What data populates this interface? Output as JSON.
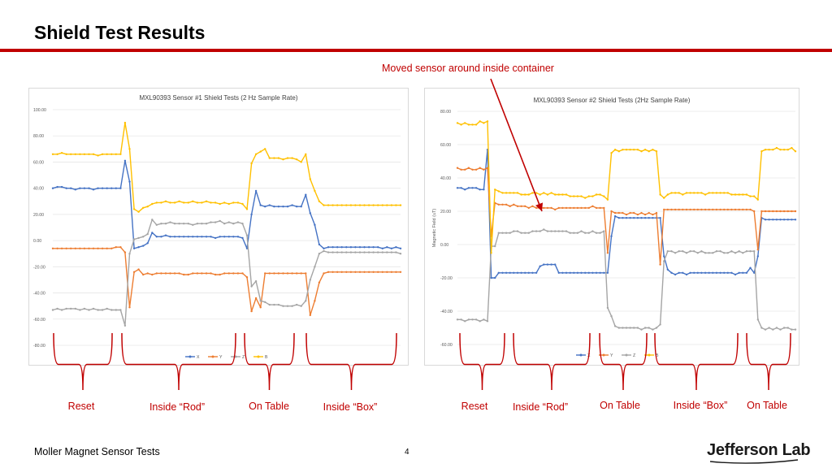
{
  "slide": {
    "title": "Shield Test Results",
    "annotation": "Moved sensor around inside container",
    "footer": "Moller Magnet Sensor Tests",
    "page_number": "4",
    "logo_text": "Jefferson Lab"
  },
  "colors": {
    "accent": "#c00000",
    "X": "#4472c4",
    "Y": "#ed7d31",
    "Z": "#a5a5a5",
    "B": "#ffc000"
  },
  "segment_labels_left": [
    "Reset",
    "Inside “Rod”",
    "On Table",
    "Inside “Box”"
  ],
  "segment_labels_right": [
    "Reset",
    "Inside “Rod”",
    "On Table",
    "Inside “Box”",
    "On Table"
  ],
  "chart_data": [
    {
      "type": "line",
      "title": "MXL90393 Sensor #1 Shield Tests (2 Hz Sample Rate)",
      "xlabel": "",
      "ylabel": "",
      "ylim": [
        -80,
        100
      ],
      "yticks": [
        -80,
        -60,
        -40,
        -20,
        0,
        20,
        40,
        60,
        80,
        100
      ],
      "ytick_labels": [
        "-80.00",
        "-60.00",
        "-40.00",
        "-20.00",
        "0.00",
        "20.00",
        "40.00",
        "60.00",
        "80.00",
        "100.00"
      ],
      "grid": true,
      "legend": "bottom",
      "n_points": 78,
      "series": [
        {
          "name": "X",
          "color": "#4472c4",
          "values": [
            40,
            41,
            41,
            40,
            40,
            39,
            40,
            40,
            40,
            39,
            40,
            40,
            40,
            40,
            40,
            40,
            61,
            45,
            -6,
            -5,
            -4,
            -2,
            6,
            3,
            3,
            4,
            3,
            3,
            3,
            3,
            3,
            3,
            3,
            3,
            3,
            3,
            2,
            3,
            3,
            3,
            3,
            3,
            2,
            -6,
            20,
            38,
            27,
            26,
            27,
            26,
            26,
            26,
            26,
            27,
            26,
            26,
            35,
            21,
            12,
            -3,
            -6,
            -5,
            -5,
            -5,
            -5,
            -5,
            -5,
            -5,
            -5,
            -5,
            -5,
            -5,
            -5,
            -6,
            -5,
            -6,
            -5,
            -6
          ]
        },
        {
          "name": "Y",
          "color": "#ed7d31",
          "values": [
            -6,
            -6,
            -6,
            -6,
            -6,
            -6,
            -6,
            -6,
            -6,
            -6,
            -6,
            -6,
            -6,
            -6,
            -5,
            -5,
            -9,
            -51,
            -24,
            -22,
            -26,
            -25,
            -26,
            -25,
            -25,
            -25,
            -25,
            -25,
            -25,
            -26,
            -26,
            -25,
            -25,
            -25,
            -25,
            -25,
            -26,
            -26,
            -25,
            -25,
            -25,
            -25,
            -25,
            -28,
            -54,
            -44,
            -51,
            -25,
            -25,
            -25,
            -25,
            -25,
            -25,
            -25,
            -25,
            -25,
            -25,
            -57,
            -46,
            -32,
            -25,
            -24,
            -24,
            -24,
            -24,
            -24,
            -24,
            -24,
            -24,
            -24,
            -24,
            -24,
            -24,
            -24,
            -24,
            -24,
            -24,
            -24
          ]
        },
        {
          "name": "Z",
          "color": "#a5a5a5",
          "values": [
            -53,
            -52,
            -53,
            -52,
            -52,
            -52,
            -53,
            -52,
            -53,
            -52,
            -53,
            -53,
            -52,
            -53,
            -53,
            -53,
            -65,
            -10,
            1,
            2,
            3,
            5,
            16,
            12,
            13,
            13,
            14,
            13,
            13,
            13,
            13,
            12,
            13,
            13,
            13,
            14,
            14,
            15,
            13,
            14,
            13,
            14,
            13,
            4,
            -35,
            -31,
            -46,
            -47,
            -49,
            -49,
            -49,
            -50,
            -50,
            -50,
            -49,
            -50,
            -46,
            -30,
            -20,
            -10,
            -8,
            -9,
            -9,
            -9,
            -9,
            -9,
            -9,
            -9,
            -9,
            -9,
            -9,
            -9,
            -9,
            -9,
            -9,
            -9,
            -9,
            -10
          ]
        },
        {
          "name": "B",
          "color": "#ffc000",
          "values": [
            66,
            66,
            67,
            66,
            66,
            66,
            66,
            66,
            66,
            66,
            65,
            66,
            66,
            66,
            66,
            66,
            90,
            70,
            24,
            22,
            25,
            26,
            28,
            29,
            29,
            30,
            29,
            29,
            30,
            29,
            29,
            30,
            29,
            29,
            30,
            29,
            29,
            28,
            29,
            28,
            29,
            29,
            28,
            24,
            59,
            66,
            68,
            70,
            63,
            63,
            63,
            62,
            63,
            63,
            62,
            60,
            66,
            47,
            38,
            30,
            27,
            27,
            27,
            27,
            27,
            27,
            27,
            27,
            27,
            27,
            27,
            27,
            27,
            27,
            27,
            27,
            27,
            27
          ]
        }
      ]
    },
    {
      "type": "line",
      "title": "MXL90393 Sensor #2 Shield Tests (2Hz Sample Rate)",
      "xlabel": "",
      "ylabel": "Magnetic Field (uT)",
      "ylim": [
        -60,
        80
      ],
      "yticks": [
        -60,
        -40,
        -20,
        0,
        20,
        40,
        60,
        80
      ],
      "ytick_labels": [
        "-60.00",
        "-40.00",
        "-20.00",
        "0.00",
        "20.00",
        "40.00",
        "60.00",
        "80.00"
      ],
      "grid": true,
      "legend": "bottom",
      "n_points": 91,
      "series": [
        {
          "name": "X",
          "color": "#4472c4",
          "values": [
            34,
            34,
            33,
            34,
            34,
            34,
            33,
            33,
            57,
            -20,
            -20,
            -17,
            -17,
            -17,
            -17,
            -17,
            -17,
            -17,
            -17,
            -17,
            -17,
            -17,
            -13,
            -12,
            -12,
            -12,
            -12,
            -17,
            -17,
            -17,
            -17,
            -17,
            -17,
            -17,
            -17,
            -17,
            -17,
            -17,
            -17,
            -17,
            -17,
            5,
            17,
            16,
            16,
            16,
            16,
            16,
            16,
            16,
            16,
            16,
            16,
            16,
            16,
            -7,
            -15,
            -17,
            -18,
            -17,
            -17,
            -18,
            -17,
            -17,
            -17,
            -17,
            -17,
            -17,
            -17,
            -17,
            -17,
            -17,
            -17,
            -17,
            -18,
            -17,
            -17,
            -17,
            -14,
            -17,
            -7,
            16,
            15,
            15,
            15,
            15,
            15,
            15,
            15,
            15,
            15
          ]
        },
        {
          "name": "Y",
          "color": "#ed7d31",
          "values": [
            46,
            45,
            45,
            46,
            45,
            45,
            46,
            45,
            46,
            5,
            25,
            24,
            24,
            24,
            23,
            24,
            23,
            23,
            23,
            22,
            23,
            22,
            22,
            22,
            22,
            22,
            21,
            22,
            22,
            22,
            22,
            22,
            22,
            22,
            22,
            22,
            23,
            22,
            22,
            22,
            -5,
            20,
            19,
            19,
            19,
            18,
            19,
            19,
            18,
            19,
            18,
            19,
            18,
            19,
            -12,
            21,
            21,
            21,
            21,
            21,
            21,
            21,
            21,
            21,
            21,
            21,
            21,
            21,
            21,
            21,
            21,
            21,
            21,
            21,
            21,
            21,
            21,
            21,
            21,
            20,
            -3,
            20,
            20,
            20,
            20,
            20,
            20,
            20,
            20,
            20,
            20
          ]
        },
        {
          "name": "Z",
          "color": "#a5a5a5",
          "values": [
            -45,
            -45,
            -46,
            -45,
            -45,
            -45,
            -46,
            -45,
            -46,
            -1,
            -1,
            7,
            7,
            7,
            7,
            8,
            8,
            7,
            7,
            7,
            8,
            8,
            8,
            9,
            8,
            8,
            8,
            8,
            8,
            8,
            7,
            7,
            7,
            8,
            7,
            7,
            8,
            7,
            7,
            8,
            -38,
            -43,
            -49,
            -50,
            -50,
            -50,
            -50,
            -50,
            -50,
            -51,
            -50,
            -50,
            -51,
            -50,
            -48,
            -10,
            -4,
            -4,
            -5,
            -4,
            -4,
            -5,
            -4,
            -4,
            -5,
            -4,
            -5,
            -5,
            -5,
            -4,
            -4,
            -5,
            -5,
            -4,
            -5,
            -4,
            -5,
            -4,
            -4,
            -4,
            -45,
            -50,
            -51,
            -50,
            -51,
            -50,
            -51,
            -50,
            -50,
            -51,
            -51
          ]
        },
        {
          "name": "B",
          "color": "#ffc000",
          "values": [
            73,
            72,
            73,
            72,
            72,
            72,
            74,
            73,
            74,
            -5,
            33,
            32,
            31,
            31,
            31,
            31,
            31,
            30,
            30,
            30,
            31,
            31,
            30,
            31,
            30,
            31,
            30,
            30,
            30,
            30,
            29,
            29,
            29,
            29,
            28,
            29,
            29,
            30,
            30,
            29,
            27,
            55,
            57,
            56,
            57,
            57,
            57,
            57,
            57,
            56,
            57,
            56,
            57,
            56,
            30,
            28,
            30,
            31,
            31,
            31,
            30,
            31,
            31,
            31,
            31,
            31,
            30,
            31,
            31,
            31,
            31,
            31,
            31,
            30,
            30,
            30,
            30,
            30,
            29,
            29,
            27,
            56,
            57,
            57,
            57,
            58,
            57,
            57,
            57,
            58,
            56
          ]
        }
      ]
    }
  ]
}
